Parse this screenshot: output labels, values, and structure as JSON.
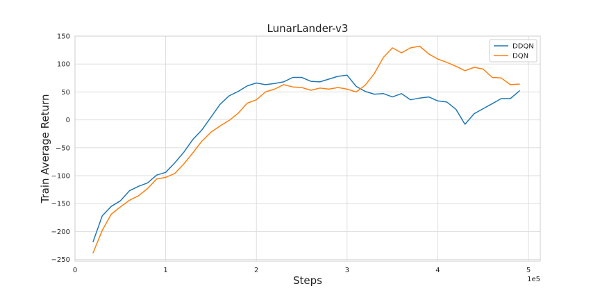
{
  "chart_data": {
    "type": "line",
    "title": "LunarLander-v3",
    "xlabel": "Steps",
    "ylabel": "Train Average Return",
    "x_offset_label": "1e5",
    "xlim": [
      0,
      5.13
    ],
    "ylim": [
      -253,
      150
    ],
    "x_ticks": [
      0,
      1,
      2,
      3,
      4,
      5
    ],
    "x_tick_labels": [
      "0",
      "1",
      "2",
      "3",
      "4",
      "5"
    ],
    "y_ticks": [
      -250,
      -200,
      -150,
      -100,
      -50,
      0,
      50,
      100,
      150
    ],
    "y_tick_labels": [
      "−250",
      "−200",
      "−150",
      "−100",
      "−50",
      "0",
      "50",
      "100",
      "150"
    ],
    "grid": true,
    "legend": "top-right",
    "x": [
      0.2,
      0.3,
      0.4,
      0.5,
      0.6,
      0.7,
      0.8,
      0.9,
      1.0,
      1.1,
      1.2,
      1.3,
      1.4,
      1.5,
      1.6,
      1.7,
      1.8,
      1.9,
      2.0,
      2.1,
      2.2,
      2.3,
      2.4,
      2.5,
      2.6,
      2.7,
      2.8,
      2.9,
      3.0,
      3.1,
      3.2,
      3.3,
      3.4,
      3.5,
      3.6,
      3.7,
      3.8,
      3.9,
      4.0,
      4.1,
      4.2,
      4.3,
      4.4,
      4.5,
      4.6,
      4.7,
      4.8,
      4.9
    ],
    "series": [
      {
        "name": "DDQN",
        "color": "#1f77b4",
        "values": [
          -218,
          -172,
          -155,
          -145,
          -127,
          -119,
          -113,
          -99,
          -94,
          -77,
          -58,
          -35,
          -18,
          5,
          28,
          43,
          51,
          61,
          66,
          63,
          65,
          68,
          76,
          76,
          69,
          68,
          73,
          78,
          80,
          60,
          51,
          46,
          47,
          41,
          47,
          36,
          39,
          41,
          34,
          32,
          19,
          -8,
          11,
          20,
          29,
          38,
          38,
          52
        ]
      },
      {
        "name": "DQN",
        "color": "#ff7f0e",
        "values": [
          -238,
          -198,
          -169,
          -156,
          -144,
          -136,
          -123,
          -106,
          -103,
          -96,
          -79,
          -59,
          -38,
          -22,
          -11,
          -1,
          12,
          30,
          36,
          50,
          55,
          63,
          59,
          58,
          53,
          57,
          55,
          58,
          55,
          50,
          62,
          83,
          112,
          129,
          120,
          129,
          132,
          118,
          109,
          103,
          96,
          88,
          94,
          91,
          76,
          75,
          63,
          64
        ]
      }
    ]
  }
}
